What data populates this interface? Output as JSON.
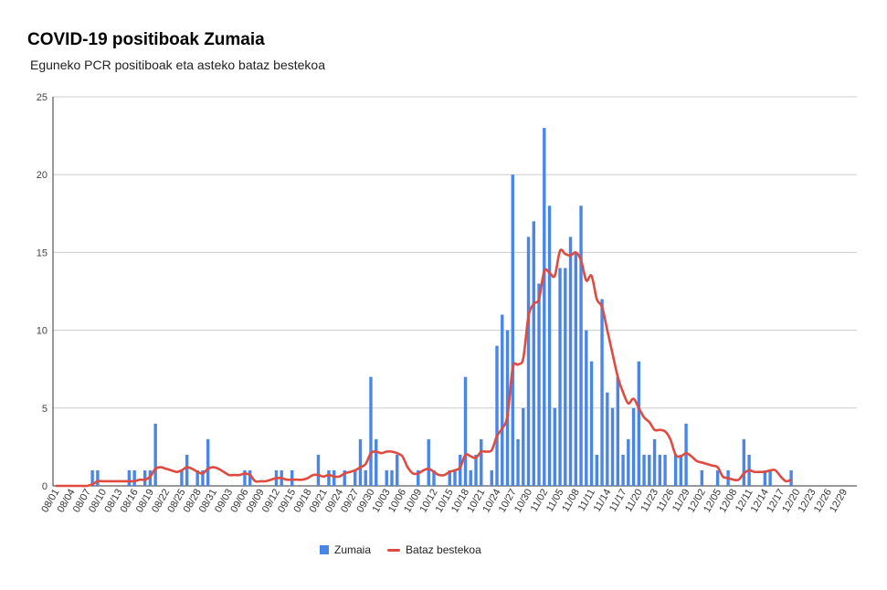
{
  "chart_data": {
    "type": "bar",
    "title": "COVID-19 positiboak Zumaia",
    "subtitle": "Eguneko PCR positiboak eta asteko bataz bestekoa",
    "xlabel": "",
    "ylabel": "",
    "ylim": [
      0,
      25
    ],
    "yticks": [
      "0",
      "5",
      "10",
      "15",
      "20",
      "25"
    ],
    "grid": true,
    "legend_position": "bottom",
    "tick_labels": [
      "08/01",
      "08/04",
      "08/07",
      "08/10",
      "08/13",
      "08/16",
      "08/19",
      "08/22",
      "08/25",
      "08/28",
      "08/31",
      "09/03",
      "09/06",
      "09/09",
      "09/12",
      "09/15",
      "09/18",
      "09/21",
      "09/24",
      "09/27",
      "09/30",
      "10/03",
      "10/06",
      "10/09",
      "10/12",
      "10/15",
      "10/18",
      "10/21",
      "10/24",
      "10/27",
      "10/30",
      "11/02",
      "11/05",
      "11/08",
      "11/11",
      "11/14",
      "11/17",
      "11/20",
      "11/23",
      "11/26",
      "11/29",
      "12/02",
      "12/05",
      "12/08",
      "12/11",
      "12/14",
      "12/17",
      "12/20",
      "12/23",
      "12/26",
      "12/29"
    ],
    "series": [
      {
        "name": "Zumaia",
        "kind": "bar",
        "color": "#4a86e8",
        "values": [
          0,
          0,
          0,
          0,
          0,
          0,
          0,
          1,
          1,
          0,
          0,
          0,
          0,
          0,
          1,
          1,
          0,
          1,
          1,
          4,
          0,
          0,
          0,
          0,
          1,
          2,
          0,
          1,
          1,
          3,
          0,
          0,
          0,
          0,
          0,
          0,
          1,
          1,
          0,
          0,
          0,
          0,
          1,
          1,
          0,
          1,
          0,
          0,
          0,
          0,
          2,
          0,
          1,
          1,
          0,
          1,
          0,
          1,
          3,
          1,
          7,
          3,
          0,
          1,
          1,
          2,
          0,
          0,
          0,
          1,
          0,
          3,
          1,
          0,
          0,
          1,
          1,
          2,
          7,
          1,
          2,
          3,
          0,
          1,
          9,
          11,
          10,
          20,
          3,
          5,
          16,
          17,
          13,
          23,
          18,
          5,
          14,
          14,
          16,
          15,
          18,
          10,
          8,
          2,
          12,
          6,
          5,
          7,
          2,
          3,
          5,
          8,
          2,
          2,
          3,
          2,
          2,
          0,
          2,
          2,
          4,
          0,
          0,
          1,
          0,
          0,
          1,
          0,
          1,
          0,
          0,
          3,
          2,
          0,
          0,
          1,
          1,
          0,
          0,
          0,
          1
        ]
      },
      {
        "name": "Bataz bestekoa",
        "kind": "line",
        "color": "#e04a3f",
        "values": [
          0,
          0,
          0,
          0,
          0,
          0,
          0,
          0.1,
          0.3,
          0.3,
          0.3,
          0.3,
          0.3,
          0.3,
          0.3,
          0.3,
          0.4,
          0.4,
          0.6,
          1.1,
          1.2,
          1.1,
          1.0,
          0.9,
          1.0,
          1.2,
          1.1,
          0.9,
          0.8,
          1.1,
          1.2,
          1.1,
          0.9,
          0.7,
          0.7,
          0.7,
          0.8,
          0.7,
          0.3,
          0.3,
          0.3,
          0.4,
          0.5,
          0.5,
          0.4,
          0.4,
          0.4,
          0.4,
          0.5,
          0.7,
          0.7,
          0.6,
          0.7,
          0.6,
          0.6,
          0.8,
          0.9,
          1.0,
          1.2,
          1.4,
          2.1,
          2.2,
          2.1,
          2.2,
          2.2,
          2.1,
          1.9,
          1.2,
          0.8,
          0.8,
          1.0,
          1.1,
          0.9,
          0.7,
          0.7,
          0.9,
          1.0,
          1.2,
          2.0,
          1.9,
          1.8,
          2.2,
          2.2,
          2.3,
          3.2,
          3.7,
          4.5,
          7.6,
          7.8,
          8.2,
          10.9,
          11.7,
          12.0,
          13.8,
          13.7,
          13.5,
          15.1,
          14.9,
          14.8,
          15.0,
          14.5,
          13.2,
          13.5,
          12.0,
          11.5,
          10.0,
          8.5,
          7.0,
          6.0,
          5.3,
          5.6,
          5.0,
          4.4,
          4.1,
          3.6,
          3.6,
          3.5,
          3.0,
          2.0,
          1.9,
          2.1,
          1.9,
          1.6,
          1.5,
          1.4,
          1.3,
          1.2,
          0.6,
          0.5,
          0.4,
          0.4,
          0.8,
          1.0,
          0.9,
          0.9,
          0.9,
          1.0,
          1.0,
          0.6,
          0.3,
          0.4
        ]
      }
    ]
  }
}
